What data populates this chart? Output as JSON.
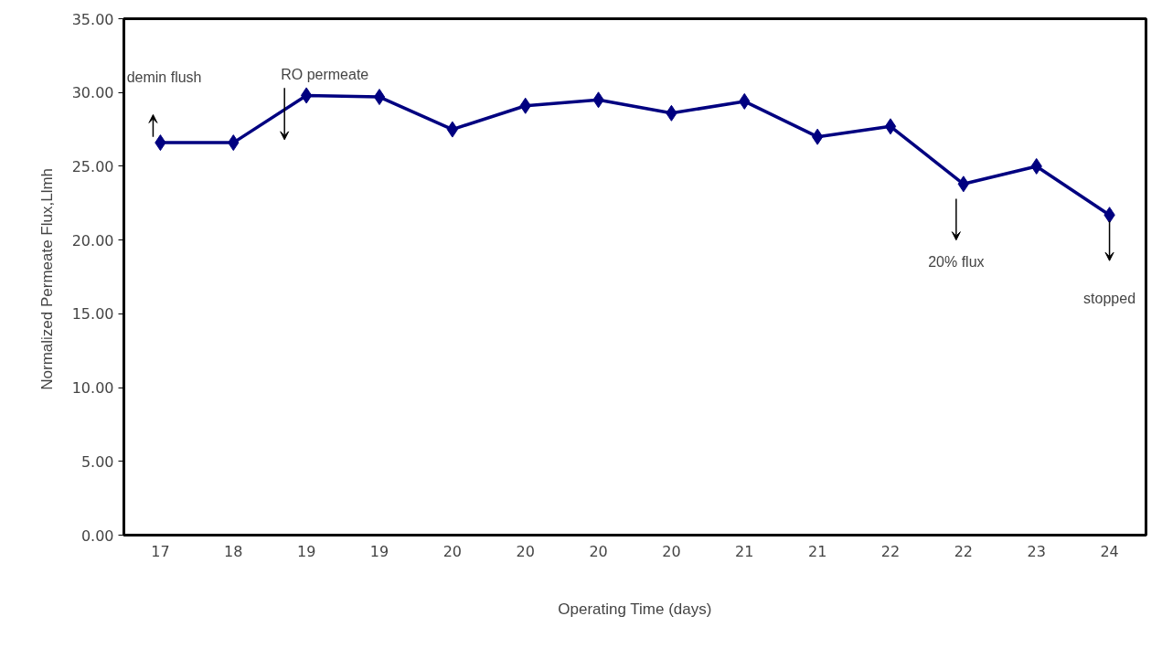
{
  "chart_data": {
    "type": "line",
    "xlabel": "Operating Time (days)",
    "ylabel": "Normalized  Permeate Flux,Llmh",
    "categories": [
      "17",
      "18",
      "19",
      "19",
      "20",
      "20",
      "20",
      "20",
      "21",
      "21",
      "22",
      "22",
      "23",
      "24"
    ],
    "series": [
      {
        "color": "#000080",
        "values": [
          26.6,
          26.6,
          29.8,
          29.7,
          27.5,
          29.1,
          29.5,
          28.6,
          29.4,
          27.0,
          27.7,
          23.8,
          25.0,
          21.7
        ]
      }
    ],
    "ylim": [
      0,
      35
    ],
    "yticks": [
      {
        "value": 0,
        "label": "0.00"
      },
      {
        "value": 5,
        "label": "5.00"
      },
      {
        "value": 10,
        "label": "10.00"
      },
      {
        "value": 15,
        "label": "15.00"
      },
      {
        "value": 20,
        "label": "20.00"
      },
      {
        "value": 25,
        "label": "25.00"
      },
      {
        "value": 30,
        "label": "30.00"
      },
      {
        "value": 35,
        "label": "35.00"
      }
    ],
    "marker": "diamond",
    "line_style": "solid",
    "grid": false,
    "annotations": [
      "demin flush",
      "RO permeate",
      "20% flux",
      "stopped"
    ]
  }
}
